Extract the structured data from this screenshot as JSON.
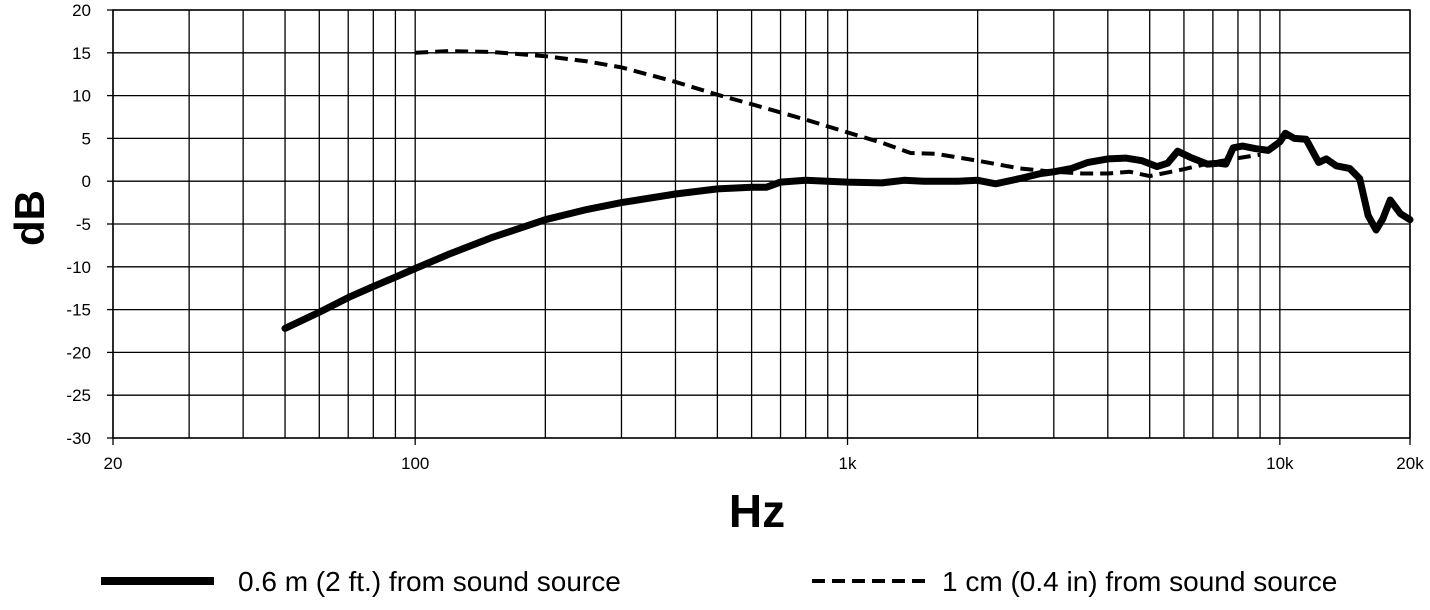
{
  "chart_data": {
    "type": "line",
    "title": "",
    "xlabel": "Hz",
    "ylabel": "dB",
    "xscale": "log",
    "xlim": [
      20,
      20000
    ],
    "ylim": [
      -30,
      20
    ],
    "grid": true,
    "legend_position": "bottom",
    "x_ticks": [
      {
        "value": 20,
        "label": "20"
      },
      {
        "value": 100,
        "label": "100"
      },
      {
        "value": 1000,
        "label": "1k"
      },
      {
        "value": 10000,
        "label": "10k"
      },
      {
        "value": 20000,
        "label": "20k"
      }
    ],
    "y_ticks": [
      {
        "value": 20,
        "label": "20"
      },
      {
        "value": 15,
        "label": "15"
      },
      {
        "value": 10,
        "label": "10"
      },
      {
        "value": 5,
        "label": "5"
      },
      {
        "value": 0,
        "label": "0"
      },
      {
        "value": -5,
        "label": "-5"
      },
      {
        "value": -10,
        "label": "-10"
      },
      {
        "value": -15,
        "label": "-15"
      },
      {
        "value": -20,
        "label": "-20"
      },
      {
        "value": -25,
        "label": "-25"
      },
      {
        "value": -30,
        "label": "-30"
      }
    ],
    "series": [
      {
        "name": "0.6 m (2 ft.) from sound source",
        "style": "solid",
        "color": "#000000",
        "points": [
          [
            50,
            -17.2
          ],
          [
            60,
            -15.3
          ],
          [
            70,
            -13.6
          ],
          [
            80,
            -12.3
          ],
          [
            90,
            -11.2
          ],
          [
            100,
            -10.2
          ],
          [
            120,
            -8.5
          ],
          [
            150,
            -6.6
          ],
          [
            200,
            -4.5
          ],
          [
            250,
            -3.3
          ],
          [
            300,
            -2.5
          ],
          [
            400,
            -1.5
          ],
          [
            500,
            -0.9
          ],
          [
            600,
            -0.7
          ],
          [
            650,
            -0.7
          ],
          [
            700,
            -0.1
          ],
          [
            800,
            0.1
          ],
          [
            900,
            0.0
          ],
          [
            1000,
            -0.1
          ],
          [
            1200,
            -0.2
          ],
          [
            1350,
            0.1
          ],
          [
            1500,
            0.0
          ],
          [
            1800,
            0.0
          ],
          [
            2000,
            0.1
          ],
          [
            2200,
            -0.3
          ],
          [
            2500,
            0.3
          ],
          [
            2800,
            0.9
          ],
          [
            3000,
            1.1
          ],
          [
            3300,
            1.5
          ],
          [
            3600,
            2.2
          ],
          [
            4000,
            2.6
          ],
          [
            4400,
            2.7
          ],
          [
            4800,
            2.4
          ],
          [
            5200,
            1.7
          ],
          [
            5500,
            2.1
          ],
          [
            5800,
            3.5
          ],
          [
            6200,
            2.8
          ],
          [
            6800,
            2.0
          ],
          [
            7200,
            2.1
          ],
          [
            7500,
            2.0
          ],
          [
            7800,
            3.9
          ],
          [
            8200,
            4.1
          ],
          [
            8800,
            3.8
          ],
          [
            9400,
            3.6
          ],
          [
            10000,
            4.6
          ],
          [
            10300,
            5.6
          ],
          [
            10800,
            5.0
          ],
          [
            11500,
            4.9
          ],
          [
            12300,
            2.2
          ],
          [
            12800,
            2.6
          ],
          [
            13500,
            1.8
          ],
          [
            14500,
            1.5
          ],
          [
            15300,
            0.3
          ],
          [
            16000,
            -4.0
          ],
          [
            16700,
            -5.7
          ],
          [
            17300,
            -4.4
          ],
          [
            18000,
            -2.2
          ],
          [
            19000,
            -3.8
          ],
          [
            20000,
            -4.5
          ]
        ]
      },
      {
        "name": "1 cm (0.4 in) from sound source",
        "style": "dashed",
        "color": "#000000",
        "points": [
          [
            100,
            15.0
          ],
          [
            120,
            15.2
          ],
          [
            150,
            15.1
          ],
          [
            200,
            14.6
          ],
          [
            250,
            14.0
          ],
          [
            300,
            13.3
          ],
          [
            400,
            11.6
          ],
          [
            500,
            10.1
          ],
          [
            600,
            9.0
          ],
          [
            800,
            7.2
          ],
          [
            1000,
            5.7
          ],
          [
            1200,
            4.5
          ],
          [
            1400,
            3.3
          ],
          [
            1600,
            3.2
          ],
          [
            2000,
            2.4
          ],
          [
            2500,
            1.5
          ],
          [
            3000,
            1.1
          ],
          [
            3500,
            0.9
          ],
          [
            4000,
            0.9
          ],
          [
            4500,
            1.1
          ],
          [
            5000,
            0.6
          ],
          [
            6000,
            1.4
          ],
          [
            7000,
            2.2
          ],
          [
            8000,
            2.7
          ],
          [
            9000,
            3.1
          ]
        ]
      }
    ]
  }
}
